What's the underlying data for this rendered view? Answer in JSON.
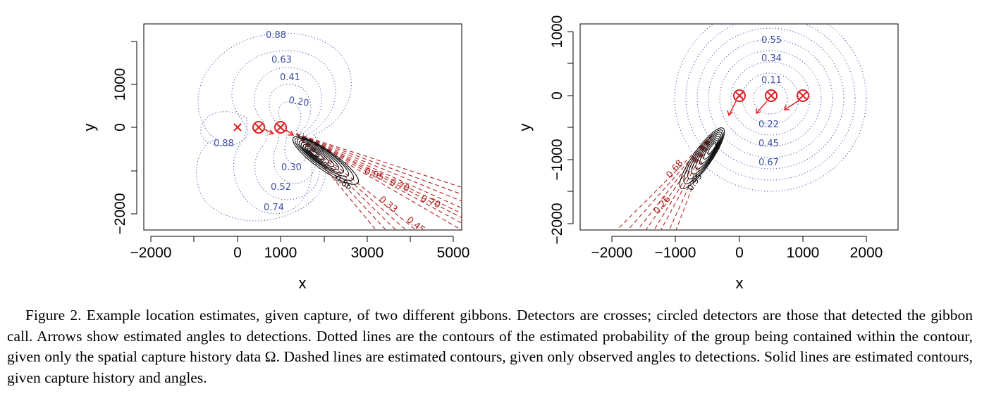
{
  "panels": [
    {
      "xlabel": "x",
      "ylabel": "y",
      "x_ticks": [
        "−2000",
        "0",
        "1000",
        "3000",
        "5000"
      ],
      "y_ticks": [
        "−2000",
        "0",
        "1000"
      ],
      "dotted_contour_labels": [
        "0.88",
        "0.63",
        "0.41",
        "0.20",
        "0.88",
        "0.30",
        "0.52",
        "0.74"
      ],
      "dashed_contour_labels": [
        "0.95",
        "0.70",
        "0.33",
        "0.70",
        "0.45"
      ],
      "solid_contour_labels": [
        "0.86"
      ]
    },
    {
      "xlabel": "x",
      "ylabel": "y",
      "x_ticks": [
        "−2000",
        "−1000",
        "0",
        "1000",
        "2000"
      ],
      "y_ticks": [
        "−2000",
        "−1000",
        "0",
        "1000"
      ],
      "dotted_contour_labels": [
        "0.55",
        "0.34",
        "0.11",
        "0.22",
        "0.45",
        "0.67"
      ],
      "dashed_contour_labels": [
        "0.68",
        "0.26"
      ],
      "solid_contour_labels": [
        "0.95"
      ]
    }
  ],
  "colors": {
    "detector": "#e02020",
    "dotted": "#5060b0",
    "dashed": "#b22222",
    "solid": "#111111"
  },
  "chart_data": [
    {
      "type": "contour",
      "xlabel": "x",
      "ylabel": "y",
      "xlim": [
        -2200,
        5200
      ],
      "ylim": [
        -2400,
        2400
      ],
      "detectors": [
        {
          "x": 0,
          "y": 0,
          "detected": false
        },
        {
          "x": 500,
          "y": 0,
          "detected": true
        },
        {
          "x": 1000,
          "y": 0,
          "detected": true
        }
      ],
      "arrow_angles_deg": [
        -20,
        -30
      ],
      "dotted_contour_levels": [
        0.88,
        0.63,
        0.41,
        0.2,
        0.88,
        0.3,
        0.52,
        0.74
      ],
      "dashed_contour_levels": [
        0.95,
        0.7,
        0.33,
        0.7,
        0.45
      ],
      "solid_contour_levels": [
        0.86
      ]
    },
    {
      "type": "contour",
      "xlabel": "x",
      "ylabel": "y",
      "xlim": [
        -2500,
        2500
      ],
      "ylim": [
        -2100,
        1000
      ],
      "detectors": [
        {
          "x": 0,
          "y": 0,
          "detected": true
        },
        {
          "x": 500,
          "y": 0,
          "detected": true
        },
        {
          "x": 1000,
          "y": 0,
          "detected": true
        }
      ],
      "arrow_angles_deg": [
        -115,
        -125,
        -140
      ],
      "dotted_contour_levels": [
        0.55,
        0.34,
        0.11,
        0.22,
        0.45,
        0.67
      ],
      "dashed_contour_levels": [
        0.68,
        0.26
      ],
      "solid_contour_levels": [
        0.95
      ]
    }
  ],
  "caption": "Figure 2.  Example location estimates, given capture, of two different gibbons. Detectors are crosses; circled detectors are those that detected the gibbon call. Arrows show estimated angles to detections. Dotted lines are the contours of the estimated probability of the group being contained within the contour, given only the spatial capture history data Ω. Dashed lines are estimated contours, given only observed angles to detections. Solid lines are estimated contours, given capture history and angles."
}
